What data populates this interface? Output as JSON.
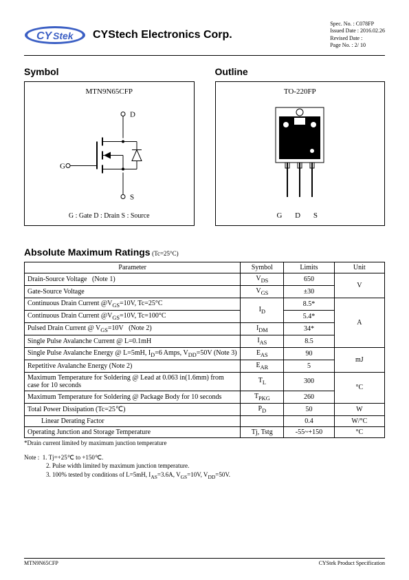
{
  "header": {
    "company": "CYStech Electronics Corp.",
    "spec_no_label": "Spec. No. :",
    "spec_no": "C078FP",
    "issued_label": "Issued Date :",
    "issued": "2016.02.26",
    "revised_label": "Revised Date :",
    "page_label": "Page No. :",
    "page": "2/ 10",
    "logo_text1": "CY",
    "logo_text2": "Stek"
  },
  "symbol": {
    "title": "Symbol",
    "part": "MTN9N65CFP",
    "d": "D",
    "g": "G",
    "s": "S",
    "legend": "G : Gate   D : Drain   S : Source"
  },
  "outline": {
    "title": "Outline",
    "package": "TO-220FP",
    "pins": "G  D  S"
  },
  "ratings": {
    "title": "Absolute Maximum Ratings",
    "condition": "(Tc=25°C)",
    "headers": {
      "param": "Parameter",
      "symbol": "Symbol",
      "limits": "Limits",
      "unit": "Unit"
    },
    "rows": [
      {
        "param": "Drain-Source Voltage   (Note 1)",
        "symbol": "V<sub>DS</sub>",
        "limits": "650",
        "unit": "V",
        "unit_rowspan": 2
      },
      {
        "param": "Gate-Source Voltage",
        "symbol": "V<sub>GS</sub>",
        "limits": "±30"
      },
      {
        "param": "Continuous Drain Current @V<sub>GS</sub>=10V, Tc=25°C",
        "symbol": "I<sub>D</sub>",
        "symbol_rowspan": 2,
        "limits": "8.5*",
        "unit": "A",
        "unit_rowspan": 4
      },
      {
        "param": "Continuous Drain Current @V<sub>GS</sub>=10V, Tc=100°C",
        "limits": "5.4*"
      },
      {
        "param": "Pulsed Drain Current @ V<sub>GS</sub>=10V   (Note 2)",
        "symbol": "I<sub>DM</sub>",
        "limits": "34*"
      },
      {
        "param": "Single Pulse Avalanche Current @ L=0.1mH",
        "symbol": "I<sub>AS</sub>",
        "limits": "8.5"
      },
      {
        "param": "Single Pulse Avalanche Energy @ L=5mH, I<sub>D</sub>=6 Amps, V<sub>DD</sub>=50V (Note 3)",
        "symbol": "E<sub>AS</sub>",
        "limits": "90",
        "unit": "mJ",
        "unit_rowspan": 2
      },
      {
        "param": "Repetitive Avalanche Energy (Note 2)",
        "symbol": "E<sub>AR</sub>",
        "limits": "5"
      },
      {
        "param": "Maximum Temperature for Soldering @ Lead at 0.063 in(1.6mm) from case for 10 seconds",
        "symbol": "T<sub>L</sub>",
        "limits": "300",
        "unit": "°C",
        "unit_rowspan": 2
      },
      {
        "param": "Maximum Temperature for Soldering @ Package Body for 10 seconds",
        "symbol": "T<sub>PKG</sub>",
        "limits": "260"
      },
      {
        "param": "Total Power Dissipation (Tc=25℃)",
        "symbol": "P<sub>D</sub>",
        "limits": "50",
        "unit": "W"
      },
      {
        "param": "        Linear Derating Factor",
        "symbol": "",
        "limits": "0.4",
        "unit": "W/°C"
      },
      {
        "param": "Operating Junction and Storage Temperature",
        "symbol": "Tj, Tstg",
        "limits": "-55~+150",
        "unit": "°C"
      }
    ],
    "footnote": "*Drain current limited by maximum junction temperature"
  },
  "notes": {
    "lead": "Note :",
    "n1": "1. Tj=+25℃ to +150℃.",
    "n2": "2. Pulse width limited by maximum junction temperature.",
    "n3": "3. 100% tested by conditions of L=5mH, I<sub>AS</sub>=3.6A, V<sub>GS</sub>=10V, V<sub>DD</sub>=50V."
  },
  "footer": {
    "left": "MTN9N65CFP",
    "right": "CYStek Product Specification"
  }
}
